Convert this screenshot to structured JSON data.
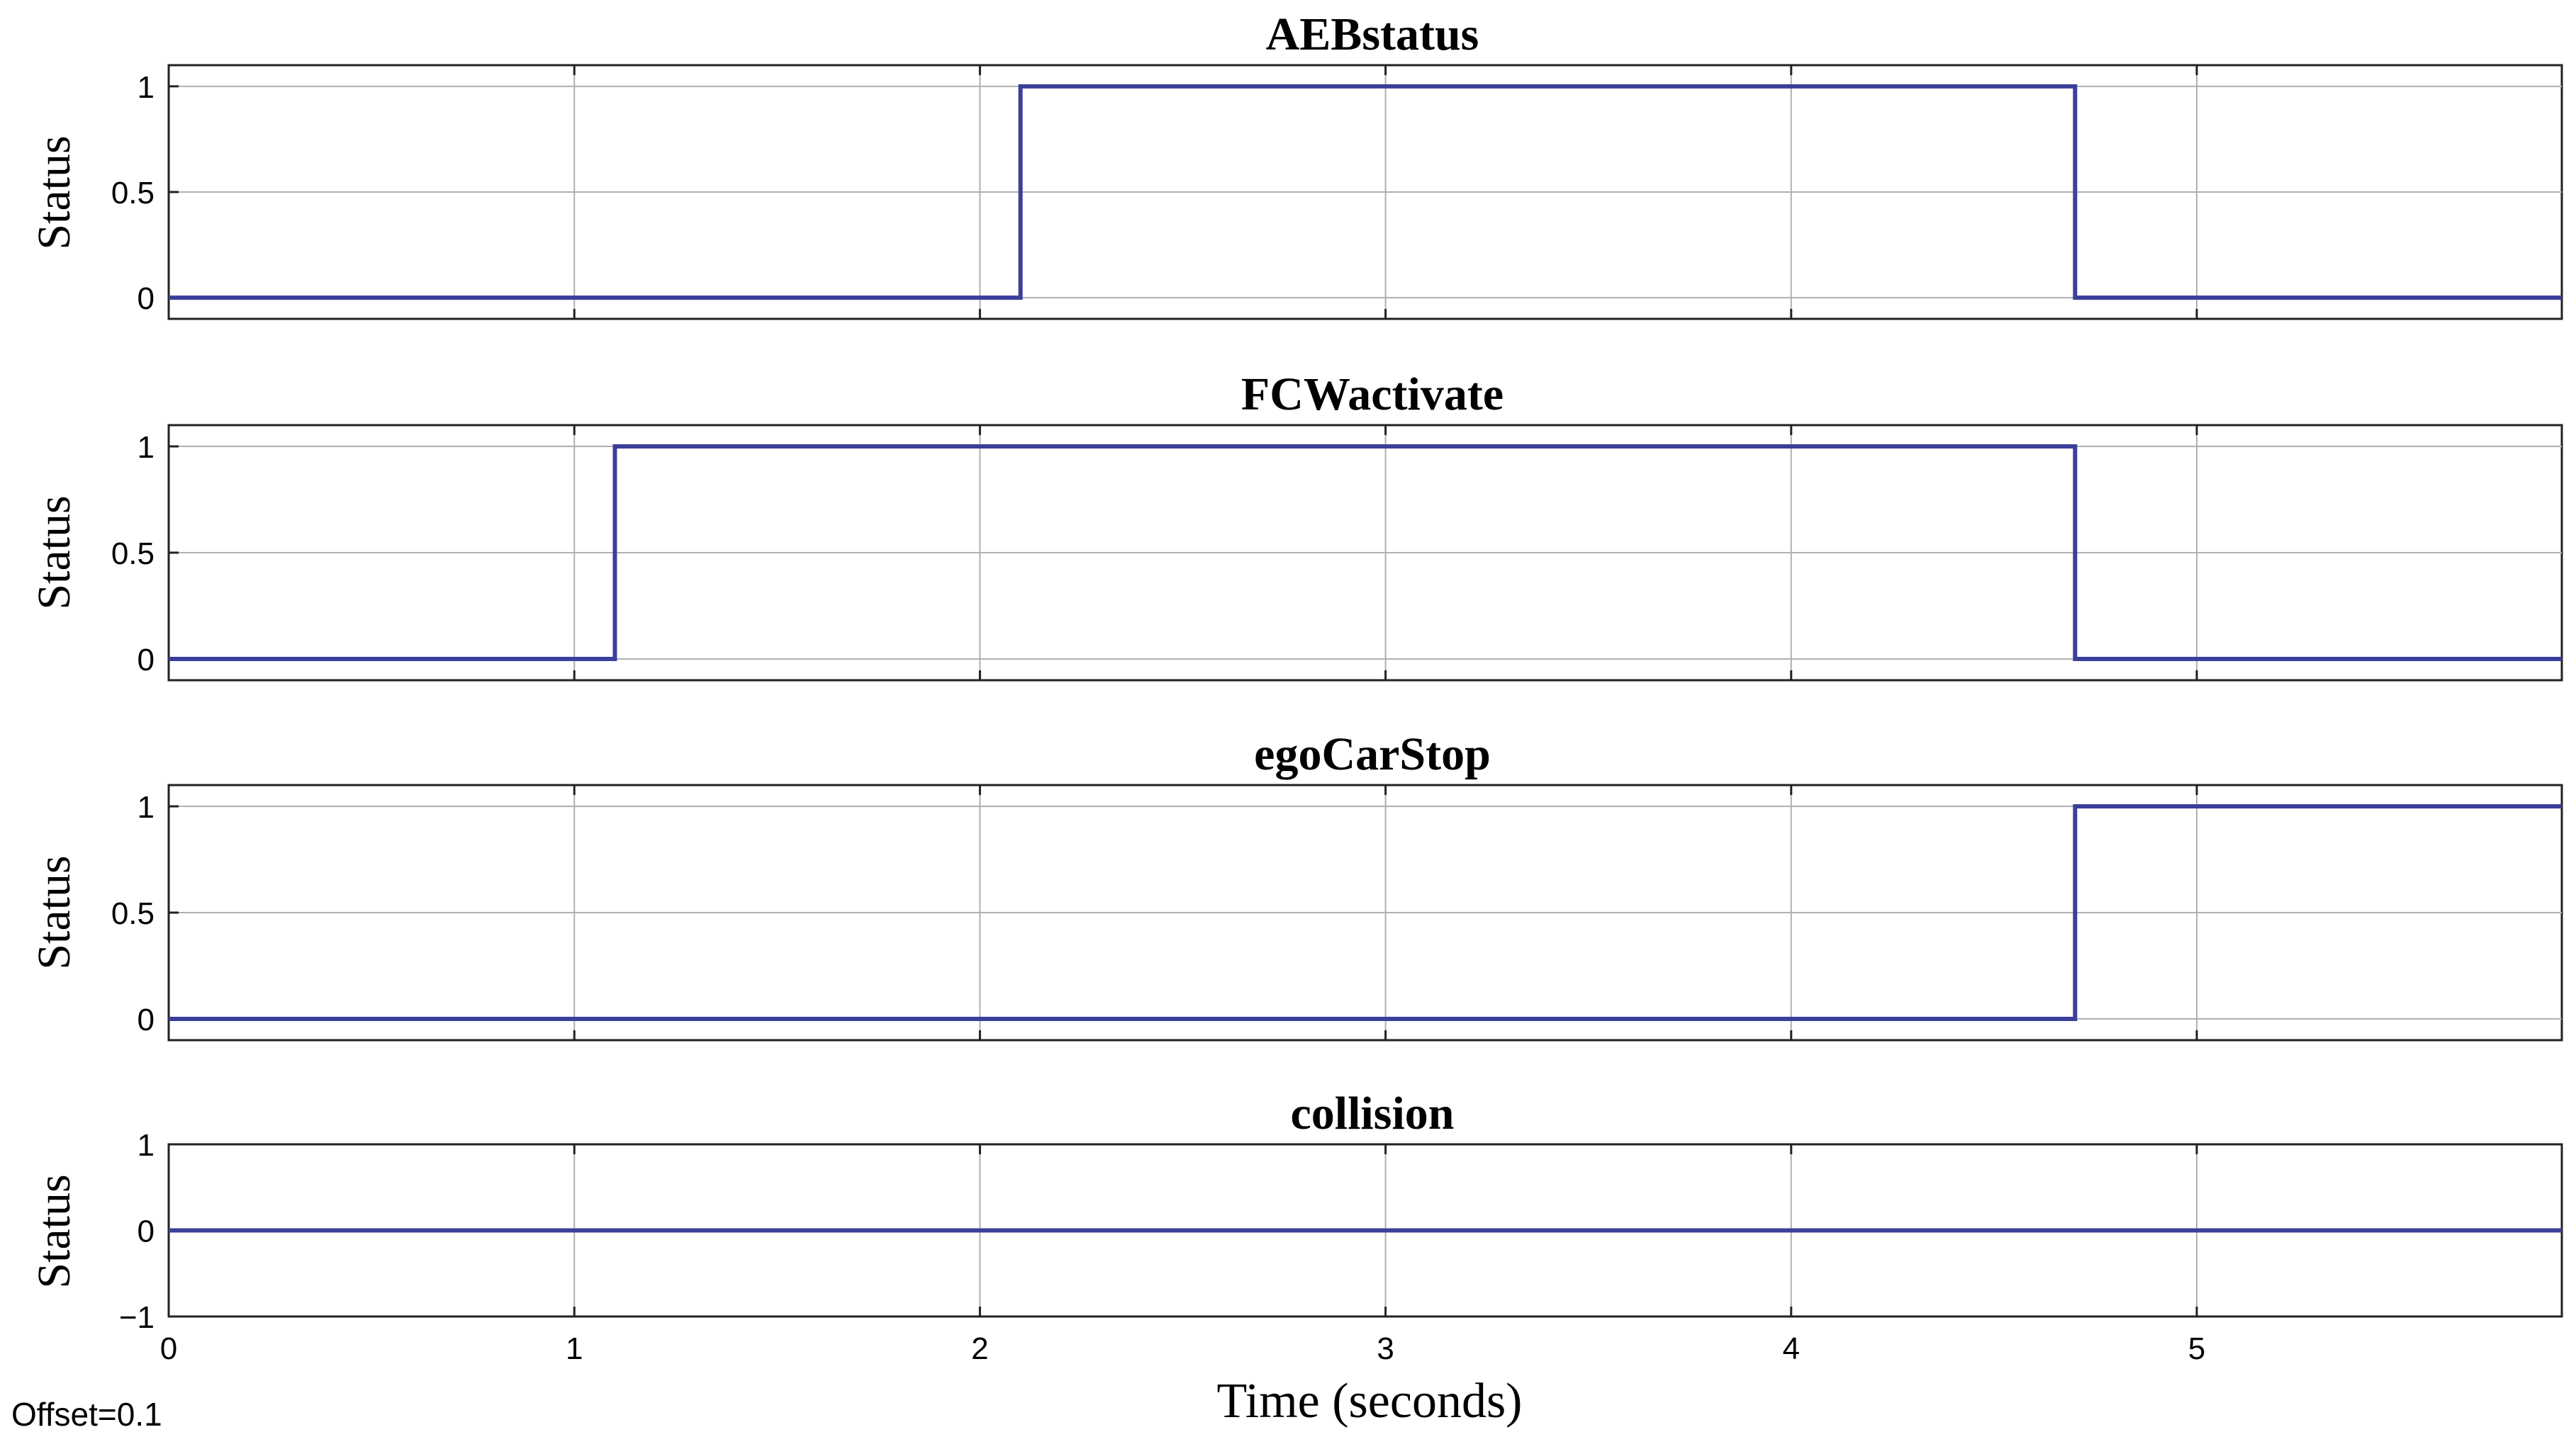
{
  "footer": {
    "offset_text": "Offset=0.1",
    "xlabel": "Time (seconds)"
  },
  "colors": {
    "trace": "#3a3f9a",
    "grid": "#b0b0b0",
    "axes": "#222222"
  },
  "chart_data": [
    {
      "type": "line",
      "title": "AEBstatus",
      "ylabel": "Status",
      "xlim": [
        0,
        5.9
      ],
      "ylim": [
        -0.1,
        1.1
      ],
      "yticks": [
        0,
        0.5,
        1
      ],
      "ytick_labels": [
        "0",
        "0.5",
        "1"
      ],
      "xticks": [
        0,
        1,
        2,
        3,
        4,
        5
      ],
      "grid": true,
      "step": true,
      "x": [
        0,
        2.1,
        4.7,
        5.9
      ],
      "y": [
        0,
        1,
        0,
        0
      ]
    },
    {
      "type": "line",
      "title": "FCWactivate",
      "ylabel": "Status",
      "xlim": [
        0,
        5.9
      ],
      "ylim": [
        -0.1,
        1.1
      ],
      "yticks": [
        0,
        0.5,
        1
      ],
      "ytick_labels": [
        "0",
        "0.5",
        "1"
      ],
      "xticks": [
        0,
        1,
        2,
        3,
        4,
        5
      ],
      "grid": true,
      "step": true,
      "x": [
        0,
        1.1,
        4.7,
        5.9
      ],
      "y": [
        0,
        1,
        0,
        0
      ]
    },
    {
      "type": "line",
      "title": "egoCarStop",
      "ylabel": "Status",
      "xlim": [
        0,
        5.9
      ],
      "ylim": [
        -0.1,
        1.1
      ],
      "yticks": [
        0,
        0.5,
        1
      ],
      "ytick_labels": [
        "0",
        "0.5",
        "1"
      ],
      "xticks": [
        0,
        1,
        2,
        3,
        4,
        5
      ],
      "grid": true,
      "step": true,
      "x": [
        0,
        4.7,
        5.9
      ],
      "y": [
        0,
        1,
        1
      ]
    },
    {
      "type": "line",
      "title": "collision",
      "ylabel": "Status",
      "xlim": [
        0,
        5.9
      ],
      "ylim": [
        -1,
        1
      ],
      "yticks": [
        -1,
        0,
        1
      ],
      "ytick_labels": [
        "−1",
        "0",
        "1"
      ],
      "xticks": [
        0,
        1,
        2,
        3,
        4,
        5
      ],
      "xtick_labels": [
        "0",
        "1",
        "2",
        "3",
        "4",
        "5"
      ],
      "grid": true,
      "step": true,
      "x": [
        0,
        5.9
      ],
      "y": [
        0,
        0
      ]
    }
  ]
}
